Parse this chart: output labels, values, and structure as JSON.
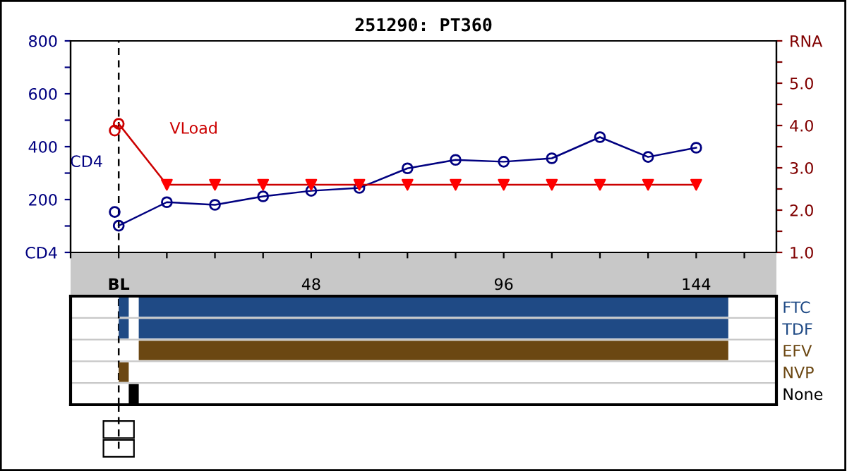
{
  "chart_data": [
    {
      "type": "line",
      "title": "251290: PT360",
      "xlim": [
        -12,
        164
      ],
      "xticks": [
        {
          "value": -12,
          "label": null
        },
        {
          "value": 0,
          "label": "BL"
        },
        {
          "value": 12,
          "label": null
        },
        {
          "value": 24,
          "label": null
        },
        {
          "value": 36,
          "label": null
        },
        48,
        {
          "value": 60,
          "label": null
        },
        {
          "value": 72,
          "label": null
        },
        {
          "value": 84,
          "label": null
        },
        96,
        {
          "value": 108,
          "label": null
        },
        {
          "value": 120,
          "label": null
        },
        {
          "value": 132,
          "label": null
        },
        144,
        {
          "value": 156,
          "label": null
        }
      ],
      "ylim": [
        0,
        800
      ],
      "yticks": [
        {
          "value": 0,
          "label": "CD4"
        },
        {
          "value": 100,
          "label": null
        },
        200,
        {
          "value": 300,
          "label": null
        },
        400,
        {
          "value": 500,
          "label": null
        },
        600,
        {
          "value": 700,
          "label": null
        },
        800
      ],
      "y2lim": [
        1,
        6
      ],
      "y2ticks": [
        {
          "value": 1,
          "label": "1.0"
        },
        {
          "value": 1.5,
          "label": null
        },
        {
          "value": 2,
          "label": "2.0"
        },
        {
          "value": 2.5,
          "label": null
        },
        {
          "value": 3,
          "label": "3.0"
        },
        {
          "value": 3.5,
          "label": null
        },
        {
          "value": 4,
          "label": "4.0"
        },
        {
          "value": 4.5,
          "label": null
        },
        {
          "value": 5,
          "label": "5.0"
        },
        {
          "value": 5.5,
          "label": null
        },
        {
          "value": 6,
          "label": "RNA"
        }
      ],
      "grid": false,
      "legend": false,
      "ref_lines": [
        {
          "axis": "x",
          "value": 0,
          "label": null,
          "color": "#000000",
          "line_style": "dashed"
        }
      ],
      "series": [
        {
          "type": "scatter",
          "marker": "circle",
          "color": "#000080",
          "x": [
            -1
          ],
          "values": [
            153
          ]
        },
        {
          "name": "CD4",
          "type": "line",
          "marker": "circle",
          "color": "#000080",
          "x": [
            0,
            12,
            24,
            36,
            48,
            60,
            72,
            84,
            96,
            108,
            120,
            132,
            144
          ],
          "values": [
            101,
            190,
            180,
            212,
            233,
            244,
            318,
            350,
            343,
            356,
            436,
            361,
            396
          ]
        },
        {
          "name": "VLoad",
          "type": "line",
          "marker": "none",
          "axis": "y2",
          "color": "#cc0000",
          "x": [
            0,
            12,
            24,
            36,
            48,
            60,
            72,
            84,
            96,
            108,
            120,
            132,
            144
          ],
          "values": [
            4.04,
            2.6,
            2.6,
            2.6,
            2.6,
            2.6,
            2.6,
            2.6,
            2.6,
            2.6,
            2.6,
            2.6,
            2.6
          ]
        },
        {
          "type": "scatter",
          "marker": "circle",
          "axis": "y2",
          "color": "#cc0000",
          "x": [
            -1,
            0
          ],
          "values": [
            3.88,
            4.04
          ]
        },
        {
          "type": "scatter",
          "marker": "triangle",
          "axis": "y2",
          "color": "#ff0000",
          "x": [
            12,
            24,
            36,
            48,
            60,
            72,
            84,
            96,
            108,
            120,
            132,
            144
          ],
          "values": [
            2.6,
            2.6,
            2.6,
            2.6,
            2.6,
            2.6,
            2.6,
            2.6,
            2.6,
            2.6,
            2.6,
            2.6
          ]
        }
      ]
    },
    {
      "type": "bar",
      "orientation": "horizontal",
      "xlim": [
        -12,
        164
      ],
      "tick_labels": "y",
      "categories": [
        "FTC",
        "TDF",
        "EFV",
        "NVP",
        "None"
      ],
      "ref_lines": [
        {
          "axis": "x",
          "value": 0,
          "label": null,
          "color": "#000000",
          "line_style": "dashed"
        }
      ],
      "series": [
        {
          "colors": [
            "#1f4a85",
            "#1f4a85",
            null,
            "#6b4712",
            "#000000"
          ],
          "base": [
            0,
            0,
            null,
            0,
            2.5
          ],
          "values": [
            2.5,
            2.5,
            null,
            2.5,
            2.5
          ]
        },
        {
          "colors": [
            "#1f4a85",
            "#1f4a85",
            "#6b4712",
            null,
            null
          ],
          "base": [
            5,
            5,
            5,
            null,
            null
          ],
          "values": [
            147,
            147,
            147,
            null,
            null
          ]
        }
      ]
    }
  ]
}
